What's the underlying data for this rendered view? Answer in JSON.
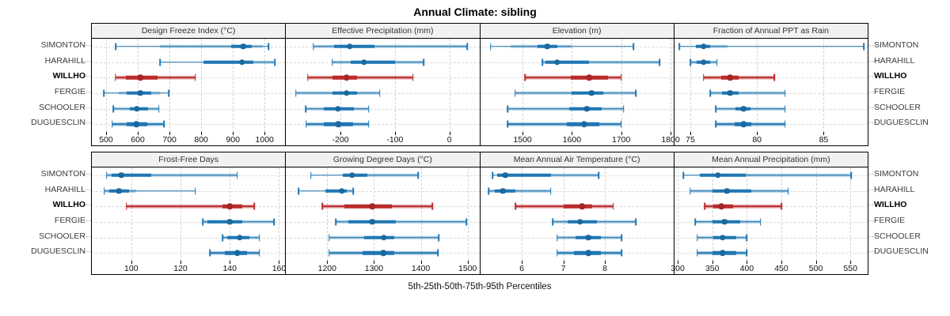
{
  "title": "Annual Climate: sibling",
  "caption": "5th-25th-50th-75th-95th Percentiles",
  "stations": [
    {
      "name": "SIMONTON",
      "highlight": false
    },
    {
      "name": "HARAHILL",
      "highlight": false
    },
    {
      "name": "WILLHO",
      "highlight": true
    },
    {
      "name": "FERGIE",
      "highlight": false
    },
    {
      "name": "SCHOOLER",
      "highlight": false
    },
    {
      "name": "DUGUESCLIN",
      "highlight": false
    }
  ],
  "colors": {
    "normal": "#1f77b4",
    "highlight": "#bb2b2b",
    "band_alpha": 0.35,
    "grid": "#d2d2d2",
    "header_bg": "#f1f1f1",
    "border": "#000000",
    "label": "#3c3c3c"
  },
  "chart_data": {
    "type": "percentile-dotplot",
    "title": "Annual Climate: sibling",
    "xlabel": "5th-25th-50th-75th-95th Percentiles",
    "panel_grid": [
      2,
      4
    ],
    "legend": "none",
    "grid": "dashed",
    "highlight_station": "WILLHO",
    "glyph": "thin line with end caps = 5th-95th; translucent thick band = shaded spread; opaque thick bar = 25th-75th; filled dot = 50th (median)",
    "rows_top_to_bottom": [
      "SIMONTON",
      "HARAHILL",
      "WILLHO",
      "FERGIE",
      "SCHOOLER",
      "DUGUESCLIN"
    ],
    "panels": [
      {
        "title": "Design Freeze Index (°C)",
        "band_row": 0,
        "ticks": [
          500,
          600,
          700,
          800,
          900,
          1000
        ],
        "range": [
          455,
          1065
        ],
        "data": [
          {
            "station": "SIMONTON",
            "p5": 530,
            "p25": 895,
            "p50": 933,
            "p75": 960,
            "p95": 1012,
            "band": [
              670,
              995
            ]
          },
          {
            "station": "HARAHILL",
            "p5": 670,
            "p25": 808,
            "p50": 929,
            "p75": 965,
            "p95": 1033,
            "band": [
              808,
              1030
            ]
          },
          {
            "station": "WILLHO",
            "p5": 529,
            "p25": 563,
            "p50": 608,
            "p75": 662,
            "p95": 781,
            "band": [
              529,
              781
            ]
          },
          {
            "station": "FERGIE",
            "p5": 493,
            "p25": 566,
            "p50": 608,
            "p75": 643,
            "p95": 698,
            "band": [
              540,
              670
            ]
          },
          {
            "station": "SCHOOLER",
            "p5": 523,
            "p25": 575,
            "p50": 597,
            "p75": 633,
            "p95": 667,
            "band": [
              523,
              667
            ]
          },
          {
            "station": "DUGUESCLIN",
            "p5": 519,
            "p25": 566,
            "p50": 596,
            "p75": 629,
            "p95": 683,
            "band": [
              519,
              683
            ]
          }
        ]
      },
      {
        "title": "Effective Precipitation (mm)",
        "band_row": 0,
        "ticks": [
          -200,
          -100,
          0
        ],
        "range": [
          -300,
          55
        ],
        "data": [
          {
            "station": "SIMONTON",
            "p5": -250,
            "p25": -212,
            "p50": -183,
            "p75": -137,
            "p95": 33,
            "band": [
              -250,
              33
            ]
          },
          {
            "station": "HARAHILL",
            "p5": -215,
            "p25": -181,
            "p50": -157,
            "p75": -100,
            "p95": -47,
            "band": [
              -215,
              -47
            ]
          },
          {
            "station": "WILLHO",
            "p5": -260,
            "p25": -214,
            "p50": -189,
            "p75": -169,
            "p95": -67,
            "band": [
              -260,
              -67
            ]
          },
          {
            "station": "FERGIE",
            "p5": -282,
            "p25": -214,
            "p50": -189,
            "p75": -169,
            "p95": -128,
            "band": [
              -282,
              -128
            ]
          },
          {
            "station": "SCHOOLER",
            "p5": -264,
            "p25": -231,
            "p50": -205,
            "p75": -176,
            "p95": -148,
            "band": [
              -264,
              -148
            ]
          },
          {
            "station": "DUGUESCLIN",
            "p5": -263,
            "p25": -231,
            "p50": -204,
            "p75": -177,
            "p95": -148,
            "band": [
              -263,
              -148
            ]
          }
        ]
      },
      {
        "title": "Elevation (m)",
        "band_row": 0,
        "ticks": [
          1500,
          1600,
          1700,
          1800
        ],
        "range": [
          1414,
          1806
        ],
        "data": [
          {
            "station": "SIMONTON",
            "p5": 1435,
            "p25": 1530,
            "p50": 1550,
            "p75": 1570,
            "p95": 1725,
            "band": [
              1475,
              1600
            ]
          },
          {
            "station": "HARAHILL",
            "p5": 1540,
            "p25": 1547,
            "p50": 1570,
            "p75": 1634,
            "p95": 1778,
            "band": [
              1540,
              1778
            ]
          },
          {
            "station": "WILLHO",
            "p5": 1505,
            "p25": 1597,
            "p50": 1635,
            "p75": 1673,
            "p95": 1700,
            "band": [
              1505,
              1700
            ]
          },
          {
            "station": "FERGIE",
            "p5": 1485,
            "p25": 1600,
            "p50": 1640,
            "p75": 1663,
            "p95": 1730,
            "band": [
              1485,
              1730
            ]
          },
          {
            "station": "SCHOOLER",
            "p5": 1470,
            "p25": 1594,
            "p50": 1630,
            "p75": 1660,
            "p95": 1705,
            "band": [
              1470,
              1705
            ]
          },
          {
            "station": "DUGUESCLIN",
            "p5": 1470,
            "p25": 1590,
            "p50": 1625,
            "p75": 1655,
            "p95": 1700,
            "band": [
              1470,
              1700
            ]
          }
        ]
      },
      {
        "title": "Fraction of Annual PPT as Rain",
        "band_row": 0,
        "ticks": [
          75,
          80,
          85
        ],
        "range": [
          73.8,
          88.3
        ],
        "data": [
          {
            "station": "SIMONTON",
            "p5": 74.2,
            "p25": 75.4,
            "p50": 76,
            "p75": 76.5,
            "p95": 88,
            "band": [
              75.4,
              77.8
            ]
          },
          {
            "station": "HARAHILL",
            "p5": 75,
            "p25": 75.5,
            "p50": 76,
            "p75": 76.5,
            "p95": 77,
            "band": [
              75,
              77
            ]
          },
          {
            "station": "WILLHO",
            "p5": 76,
            "p25": 77.3,
            "p50": 78,
            "p75": 78.6,
            "p95": 81.3,
            "band": [
              76,
              81.3
            ]
          },
          {
            "station": "FERGIE",
            "p5": 76.5,
            "p25": 77.4,
            "p50": 78,
            "p75": 78.6,
            "p95": 82.1,
            "band": [
              76.5,
              82.1
            ]
          },
          {
            "station": "SCHOOLER",
            "p5": 76.9,
            "p25": 78.4,
            "p50": 79,
            "p75": 79.5,
            "p95": 82.1,
            "band": [
              76.9,
              82.1
            ]
          },
          {
            "station": "DUGUESCLIN",
            "p5": 76.9,
            "p25": 78.3,
            "p50": 79,
            "p75": 79.6,
            "p95": 82.1,
            "band": [
              76.9,
              82.1
            ]
          }
        ]
      },
      {
        "title": "Frost-Free Days",
        "band_row": 1,
        "ticks": [
          100,
          120,
          140,
          160
        ],
        "range": [
          84,
          162.5
        ],
        "data": [
          {
            "station": "SIMONTON",
            "p5": 90,
            "p25": 92,
            "p50": 96,
            "p75": 108,
            "p95": 143,
            "band": [
              90,
              143
            ]
          },
          {
            "station": "HARAHILL",
            "p5": 89,
            "p25": 91,
            "p50": 95,
            "p75": 99,
            "p95": 126,
            "band": [
              89,
              102
            ]
          },
          {
            "station": "WILLHO",
            "p5": 98,
            "p25": 137,
            "p50": 140,
            "p75": 145,
            "p95": 150,
            "band": [
              98,
              150
            ]
          },
          {
            "station": "FERGIE",
            "p5": 129,
            "p25": 131,
            "p50": 140,
            "p75": 145,
            "p95": 158,
            "band": [
              129,
              158
            ]
          },
          {
            "station": "SCHOOLER",
            "p5": 137,
            "p25": 139,
            "p50": 144,
            "p75": 148,
            "p95": 152,
            "band": [
              137,
              152
            ]
          },
          {
            "station": "DUGUESCLIN",
            "p5": 132,
            "p25": 138,
            "p50": 143,
            "p75": 147,
            "p95": 152,
            "band": [
              132,
              152
            ]
          }
        ]
      },
      {
        "title": "Growing Degree Days (°C)",
        "band_row": 1,
        "ticks": [
          1200,
          1300,
          1400,
          1500
        ],
        "range": [
          1112,
          1525
        ],
        "data": [
          {
            "station": "SIMONTON",
            "p5": 1165,
            "p25": 1234,
            "p50": 1253,
            "p75": 1285,
            "p95": 1394,
            "band": [
              1234,
              1394
            ]
          },
          {
            "station": "HARAHILL",
            "p5": 1139,
            "p25": 1196,
            "p50": 1231,
            "p75": 1242,
            "p95": 1256,
            "band": [
              1196,
              1256
            ]
          },
          {
            "station": "WILLHO",
            "p5": 1190,
            "p25": 1236,
            "p50": 1296,
            "p75": 1338,
            "p95": 1425,
            "band": [
              1190,
              1425
            ]
          },
          {
            "station": "FERGIE",
            "p5": 1218,
            "p25": 1246,
            "p50": 1296,
            "p75": 1346,
            "p95": 1497,
            "band": [
              1218,
              1497
            ]
          },
          {
            "station": "SCHOOLER",
            "p5": 1204,
            "p25": 1279,
            "p50": 1321,
            "p75": 1343,
            "p95": 1438,
            "band": [
              1204,
              1438
            ]
          },
          {
            "station": "DUGUESCLIN",
            "p5": 1204,
            "p25": 1276,
            "p50": 1320,
            "p75": 1343,
            "p95": 1437,
            "band": [
              1204,
              1437
            ]
          }
        ]
      },
      {
        "title": "Mean Annual Air Temperature (°C)",
        "band_row": 1,
        "ticks": [
          6,
          7,
          8
        ],
        "range": [
          5.0,
          9.65
        ],
        "data": [
          {
            "station": "SIMONTON",
            "p5": 5.3,
            "p25": 5.4,
            "p50": 5.6,
            "p75": 6.7,
            "p95": 7.85,
            "band": [
              5.4,
              7.85
            ]
          },
          {
            "station": "HARAHILL",
            "p5": 5.2,
            "p25": 5.35,
            "p50": 5.55,
            "p75": 5.85,
            "p95": 6.7,
            "band": [
              5.2,
              6.7
            ]
          },
          {
            "station": "WILLHO",
            "p5": 5.85,
            "p25": 7.0,
            "p50": 7.45,
            "p75": 7.7,
            "p95": 8.2,
            "band": [
              5.85,
              8.2
            ]
          },
          {
            "station": "FERGIE",
            "p5": 6.75,
            "p25": 7.1,
            "p50": 7.4,
            "p75": 7.8,
            "p95": 8.75,
            "band": [
              6.75,
              8.75
            ]
          },
          {
            "station": "SCHOOLER",
            "p5": 6.85,
            "p25": 7.3,
            "p50": 7.6,
            "p75": 7.9,
            "p95": 8.4,
            "band": [
              6.85,
              8.4
            ]
          },
          {
            "station": "DUGUESCLIN",
            "p5": 6.85,
            "p25": 7.25,
            "p50": 7.6,
            "p75": 7.9,
            "p95": 8.4,
            "band": [
              6.85,
              8.4
            ]
          }
        ]
      },
      {
        "title": "Mean Annual Precipitation (mm)",
        "band_row": 1,
        "ticks": [
          300,
          350,
          400,
          450,
          500,
          550
        ],
        "range": [
          295,
          575
        ],
        "data": [
          {
            "station": "SIMONTON",
            "p5": 308,
            "p25": 332,
            "p50": 358,
            "p75": 399,
            "p95": 551,
            "band": [
              332,
              551
            ]
          },
          {
            "station": "HARAHILL",
            "p5": 318,
            "p25": 350,
            "p50": 371,
            "p75": 407,
            "p95": 460,
            "band": [
              318,
              460
            ]
          },
          {
            "station": "WILLHO",
            "p5": 339,
            "p25": 352,
            "p50": 363,
            "p75": 380,
            "p95": 450,
            "band": [
              339,
              450
            ]
          },
          {
            "station": "FERGIE",
            "p5": 325,
            "p25": 350,
            "p50": 368,
            "p75": 390,
            "p95": 420,
            "band": [
              325,
              420
            ]
          },
          {
            "station": "SCHOOLER",
            "p5": 328,
            "p25": 352,
            "p50": 365,
            "p75": 385,
            "p95": 400,
            "band": [
              328,
              400
            ]
          },
          {
            "station": "DUGUESCLIN",
            "p5": 328,
            "p25": 350,
            "p50": 365,
            "p75": 385,
            "p95": 400,
            "band": [
              328,
              400
            ]
          }
        ]
      }
    ]
  }
}
